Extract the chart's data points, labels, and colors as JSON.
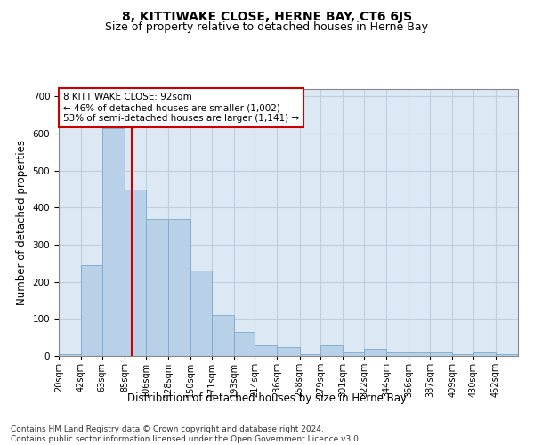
{
  "title": "8, KITTIWAKE CLOSE, HERNE BAY, CT6 6JS",
  "subtitle": "Size of property relative to detached houses in Herne Bay",
  "xlabel": "Distribution of detached houses by size in Herne Bay",
  "ylabel": "Number of detached properties",
  "bins": [
    "20sqm",
    "42sqm",
    "63sqm",
    "85sqm",
    "106sqm",
    "128sqm",
    "150sqm",
    "171sqm",
    "193sqm",
    "214sqm",
    "236sqm",
    "258sqm",
    "279sqm",
    "301sqm",
    "322sqm",
    "344sqm",
    "366sqm",
    "387sqm",
    "409sqm",
    "430sqm",
    "452sqm"
  ],
  "bin_edges": [
    20,
    42,
    63,
    85,
    106,
    128,
    150,
    171,
    193,
    214,
    236,
    258,
    279,
    301,
    322,
    344,
    366,
    387,
    409,
    430,
    452,
    474
  ],
  "counts": [
    5,
    245,
    615,
    450,
    370,
    370,
    230,
    110,
    65,
    30,
    25,
    5,
    30,
    10,
    20,
    10,
    10,
    10,
    5,
    10,
    5
  ],
  "bar_color": "#b8d0e8",
  "bar_edgecolor": "#7aaac8",
  "grid_color": "#c0cfe0",
  "background_color": "#dce8f4",
  "vline_x": 92,
  "vline_color": "#cc0000",
  "annotation_text": "8 KITTIWAKE CLOSE: 92sqm\n← 46% of detached houses are smaller (1,002)\n53% of semi-detached houses are larger (1,141) →",
  "annotation_box_color": "#ffffff",
  "annotation_box_edgecolor": "#cc0000",
  "ylim": [
    0,
    720
  ],
  "yticks": [
    0,
    100,
    200,
    300,
    400,
    500,
    600,
    700
  ],
  "footer": "Contains HM Land Registry data © Crown copyright and database right 2024.\nContains public sector information licensed under the Open Government Licence v3.0.",
  "title_fontsize": 10,
  "subtitle_fontsize": 9,
  "label_fontsize": 8.5,
  "tick_fontsize": 7.5,
  "footer_fontsize": 6.5
}
